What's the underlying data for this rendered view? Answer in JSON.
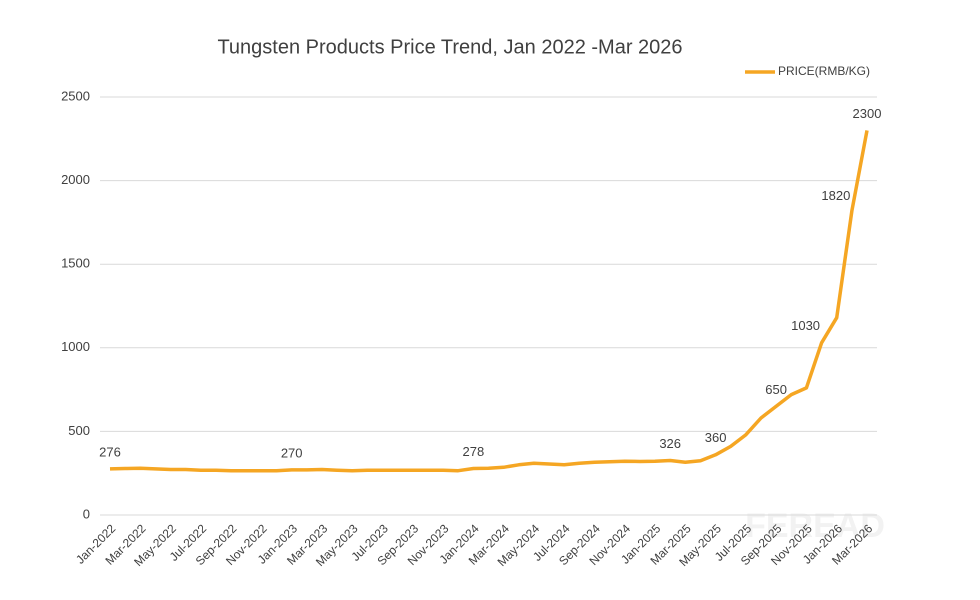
{
  "chart_data": {
    "type": "line",
    "title": "Tungsten Products Price Trend, Jan 2022 -Mar 2026",
    "categories": [
      "Jan-2022",
      null,
      "Mar-2022",
      null,
      "May-2022",
      null,
      "Jul-2022",
      null,
      "Sep-2022",
      null,
      "Nov-2022",
      null,
      "Jan-2023",
      null,
      "Mar-2023",
      null,
      "May-2023",
      null,
      "Jul-2023",
      null,
      "Sep-2023",
      null,
      "Nov-2023",
      null,
      "Jan-2024",
      null,
      "Mar-2024",
      null,
      "May-2024",
      null,
      "Jul-2024",
      null,
      "Sep-2024",
      null,
      "Nov-2024",
      null,
      "Jan-2025",
      null,
      "Mar-2025",
      null,
      "May-2025",
      null,
      "Jul-2025",
      null,
      "Sep-2025",
      null,
      "Nov-2025",
      null,
      "Jan-2026",
      null,
      "Mar-2026"
    ],
    "series": [
      {
        "name": "PRICE(RMB/KG)",
        "color": "#f5a623",
        "values": [
          276,
          278,
          280,
          276,
          272,
          272,
          268,
          268,
          265,
          265,
          265,
          265,
          270,
          270,
          272,
          268,
          265,
          268,
          268,
          268,
          268,
          268,
          268,
          265,
          278,
          280,
          285,
          300,
          310,
          305,
          300,
          310,
          315,
          318,
          322,
          320,
          322,
          326,
          315,
          325,
          360,
          410,
          480,
          580,
          650,
          720,
          760,
          1030,
          1180,
          1820,
          2300
        ],
        "labeled_points": [
          0,
          12,
          24,
          37,
          40,
          44,
          47,
          49,
          50
        ]
      }
    ],
    "ylim": [
      0,
      2500
    ],
    "yticks": [
      0,
      500,
      1000,
      1500,
      2000,
      2500
    ],
    "grid": true,
    "legend": "top-right",
    "watermark": "FEREAD"
  }
}
